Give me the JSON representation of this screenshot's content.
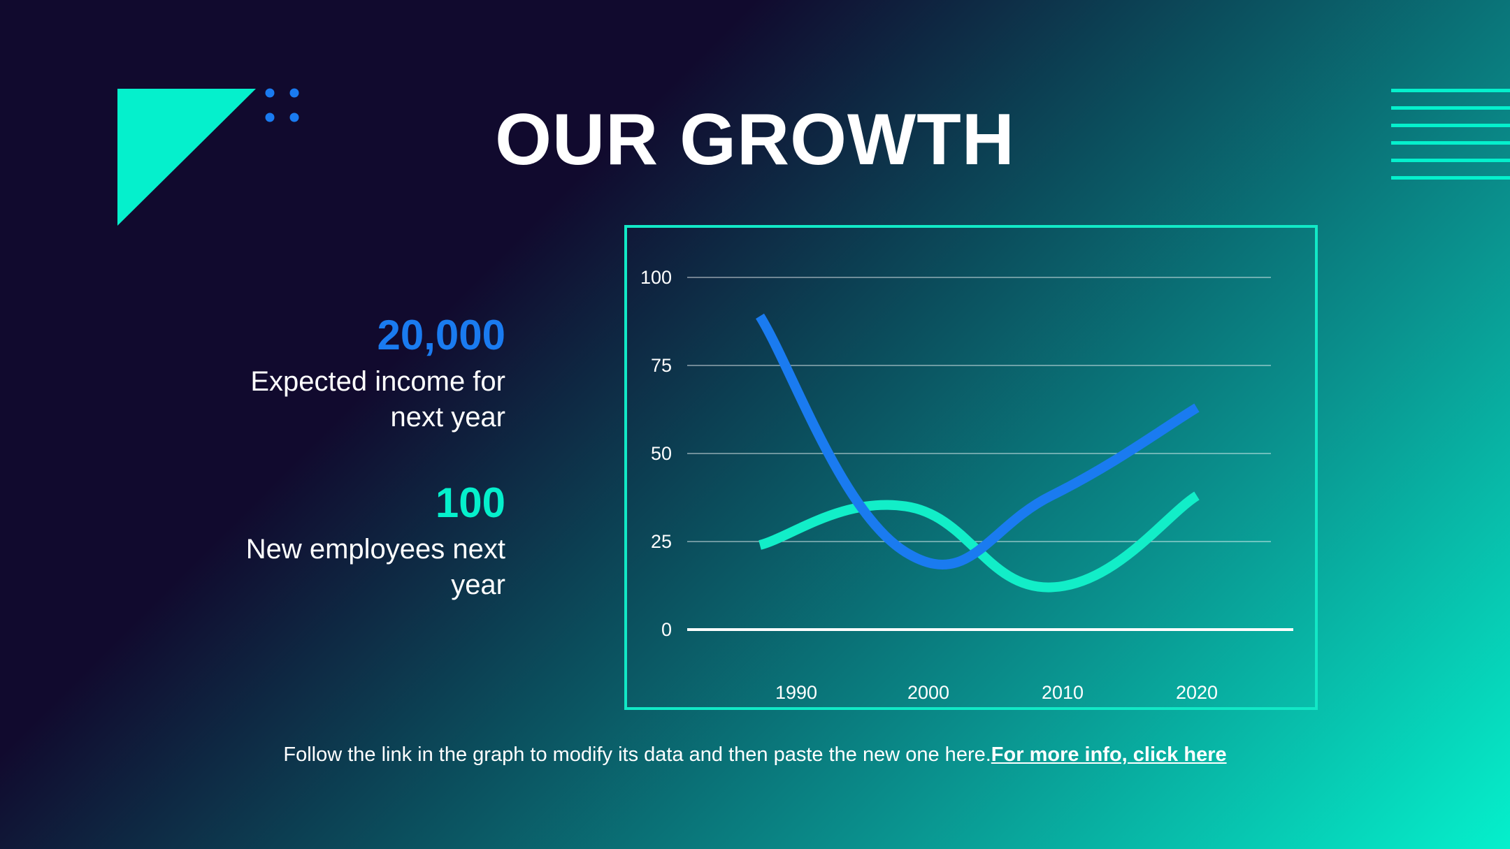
{
  "slide": {
    "title": "OUR GROWTH",
    "stats": [
      {
        "value": "20,000",
        "label_line1": "Expected income for",
        "label_line2": "next year",
        "color": "#1a7bf0"
      },
      {
        "value": "100",
        "label_line1": "New employees next",
        "label_line2": "year",
        "color": "#05f0cc"
      }
    ],
    "footer_text": "Follow the link in the graph to modify its data and then paste the new one here.",
    "footer_link": "For more info, click here"
  },
  "colors": {
    "background_dark": "#110a2e",
    "background_light": "#05f0cc",
    "accent_teal": "#05f0cc",
    "accent_blue": "#1a7bf0",
    "frame": "#12e8c6",
    "text": "#ffffff"
  },
  "chart_data": {
    "type": "line",
    "x": [
      1987.5,
      1997.5,
      2007.5,
      2017.5
    ],
    "xticks": [
      "1990",
      "2000",
      "2010",
      "2020"
    ],
    "ylim": [
      0,
      100
    ],
    "yticks": [
      "0",
      "25",
      "50",
      "75",
      "100"
    ],
    "grid": true,
    "legend": "none",
    "series": [
      {
        "color": "#1a7bf0",
        "values": [
          89,
          22,
          38,
          63
        ]
      },
      {
        "color": "#12eec8",
        "values": [
          24,
          35,
          12,
          38
        ]
      }
    ]
  }
}
